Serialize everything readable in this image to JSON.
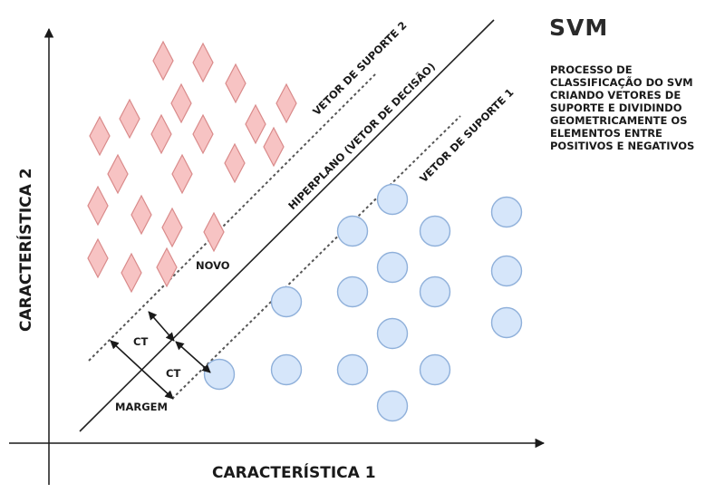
{
  "title": "SVM",
  "description_lines": [
    "PROCESSO DE",
    "CLASSIFICAÇÃO DO SVM",
    "CRIANDO VETORES DE",
    "SUPORTE E DIVIDINDO",
    "GEOMETRICAMENTE OS",
    "ELEMENTOS ENTRE",
    "POSITIVOS E NEGATIVOS"
  ],
  "axes": {
    "x_label": "CARACTERÍSTICA 1",
    "y_label": "CARACTERÍSTICA 2"
  },
  "lines": {
    "hyperplane": "HIPERPLANO (VETOR DE DECISÃO)",
    "support_vector_1": "VETOR DE SUPORTE 1",
    "support_vector_2": "VETOR DE SUPORTE 2"
  },
  "annotations": {
    "new_point": "NOVO",
    "ct_upper": "CT",
    "ct_lower": "CT",
    "margin": "MARGEM"
  },
  "colors": {
    "diamond_fill": "#f7c3c3",
    "diamond_stroke": "#d98a8a",
    "circle_fill": "#d6e6fa",
    "circle_stroke": "#8fb0da",
    "line": "#222222",
    "dotted": "#555555"
  }
}
